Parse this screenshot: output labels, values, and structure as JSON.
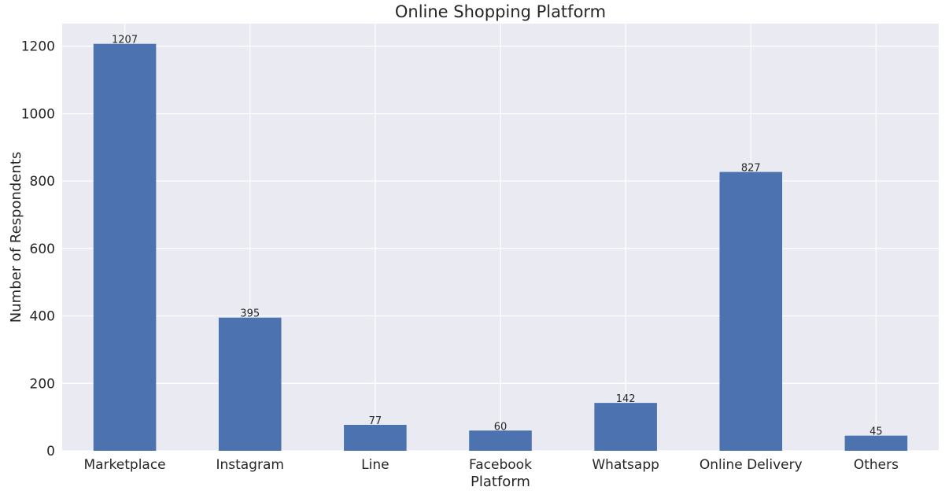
{
  "chart_data": {
    "type": "bar",
    "title": "Online Shopping Platform",
    "xlabel": "Platform",
    "ylabel": "Number of Respondents",
    "categories": [
      "Marketplace",
      "Instagram",
      "Line",
      "Facebook",
      "Whatsapp",
      "Online Delivery",
      "Others"
    ],
    "values": [
      1207,
      395,
      77,
      60,
      142,
      827,
      45
    ],
    "data_labels": [
      "1207",
      "395",
      "77",
      "60",
      "142",
      "827",
      "45"
    ],
    "ylim": [
      0,
      1267
    ],
    "yticks": [
      0,
      200,
      400,
      600,
      800,
      1000,
      1200
    ],
    "ytick_labels": [
      "0",
      "200",
      "400",
      "600",
      "800",
      "1000",
      "1200"
    ],
    "grid": true,
    "legend": "none",
    "colors": {
      "bar": "#4c72b0",
      "plot_background": "#eaeaf2",
      "grid": "#ffffff",
      "text": "#262626"
    }
  }
}
